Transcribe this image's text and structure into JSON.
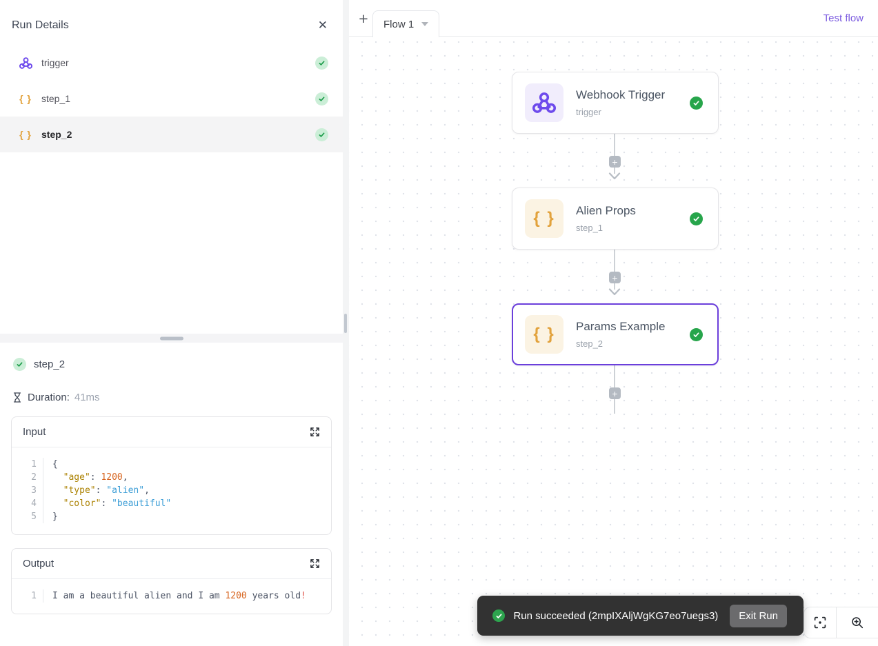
{
  "colors": {
    "accent_purple": "#6b3fdb",
    "link_purple": "#7c5ce0",
    "success_green": "#27a54b",
    "amber_icon": "#e2a23c",
    "webhook_purple": "#6d4aec",
    "toast_bg": "#323232"
  },
  "run_details": {
    "title": "Run Details",
    "steps": [
      {
        "label": "trigger",
        "icon": "webhook",
        "selected": false,
        "status": "success"
      },
      {
        "label": "step_1",
        "icon": "code",
        "selected": false,
        "status": "success"
      },
      {
        "label": "step_2",
        "icon": "code",
        "selected": true,
        "status": "success"
      }
    ]
  },
  "step_details": {
    "name": "step_2",
    "duration_label": "Duration:",
    "duration_value": "41ms",
    "input": {
      "title": "Input",
      "lines": [
        [
          {
            "c": "pun",
            "t": "{"
          }
        ],
        [
          {
            "c": "pln",
            "t": "  "
          },
          {
            "c": "key",
            "t": "\"age\""
          },
          {
            "c": "pun",
            "t": ": "
          },
          {
            "c": "num",
            "t": "1200"
          },
          {
            "c": "pun",
            "t": ","
          }
        ],
        [
          {
            "c": "pln",
            "t": "  "
          },
          {
            "c": "key",
            "t": "\"type\""
          },
          {
            "c": "pun",
            "t": ": "
          },
          {
            "c": "str",
            "t": "\"alien\""
          },
          {
            "c": "pun",
            "t": ","
          }
        ],
        [
          {
            "c": "pln",
            "t": "  "
          },
          {
            "c": "key",
            "t": "\"color\""
          },
          {
            "c": "pun",
            "t": ": "
          },
          {
            "c": "str",
            "t": "\"beautiful\""
          }
        ],
        [
          {
            "c": "pun",
            "t": "}"
          }
        ]
      ]
    },
    "output": {
      "title": "Output",
      "lines": [
        [
          {
            "c": "pln",
            "t": "I am a beautiful alien and I am "
          },
          {
            "c": "num",
            "t": "1200"
          },
          {
            "c": "pln",
            "t": " years old"
          },
          {
            "c": "bang",
            "t": "!"
          }
        ]
      ]
    }
  },
  "canvas": {
    "tab": {
      "label": "Flow 1"
    },
    "add_button": "+",
    "test_flow_label": "Test flow",
    "nodes": [
      {
        "title": "Webhook Trigger",
        "subtitle": "trigger",
        "icon": "webhook",
        "selected": false,
        "status": "success"
      },
      {
        "title": "Alien Props",
        "subtitle": "step_1",
        "icon": "code",
        "selected": false,
        "status": "success"
      },
      {
        "title": "Params Example",
        "subtitle": "step_2",
        "icon": "code",
        "selected": true,
        "status": "success"
      }
    ]
  },
  "toast": {
    "message": "Run succeeded (2mpIXAljWgKG7eo7uegs3)",
    "exit_button": "Exit Run"
  }
}
